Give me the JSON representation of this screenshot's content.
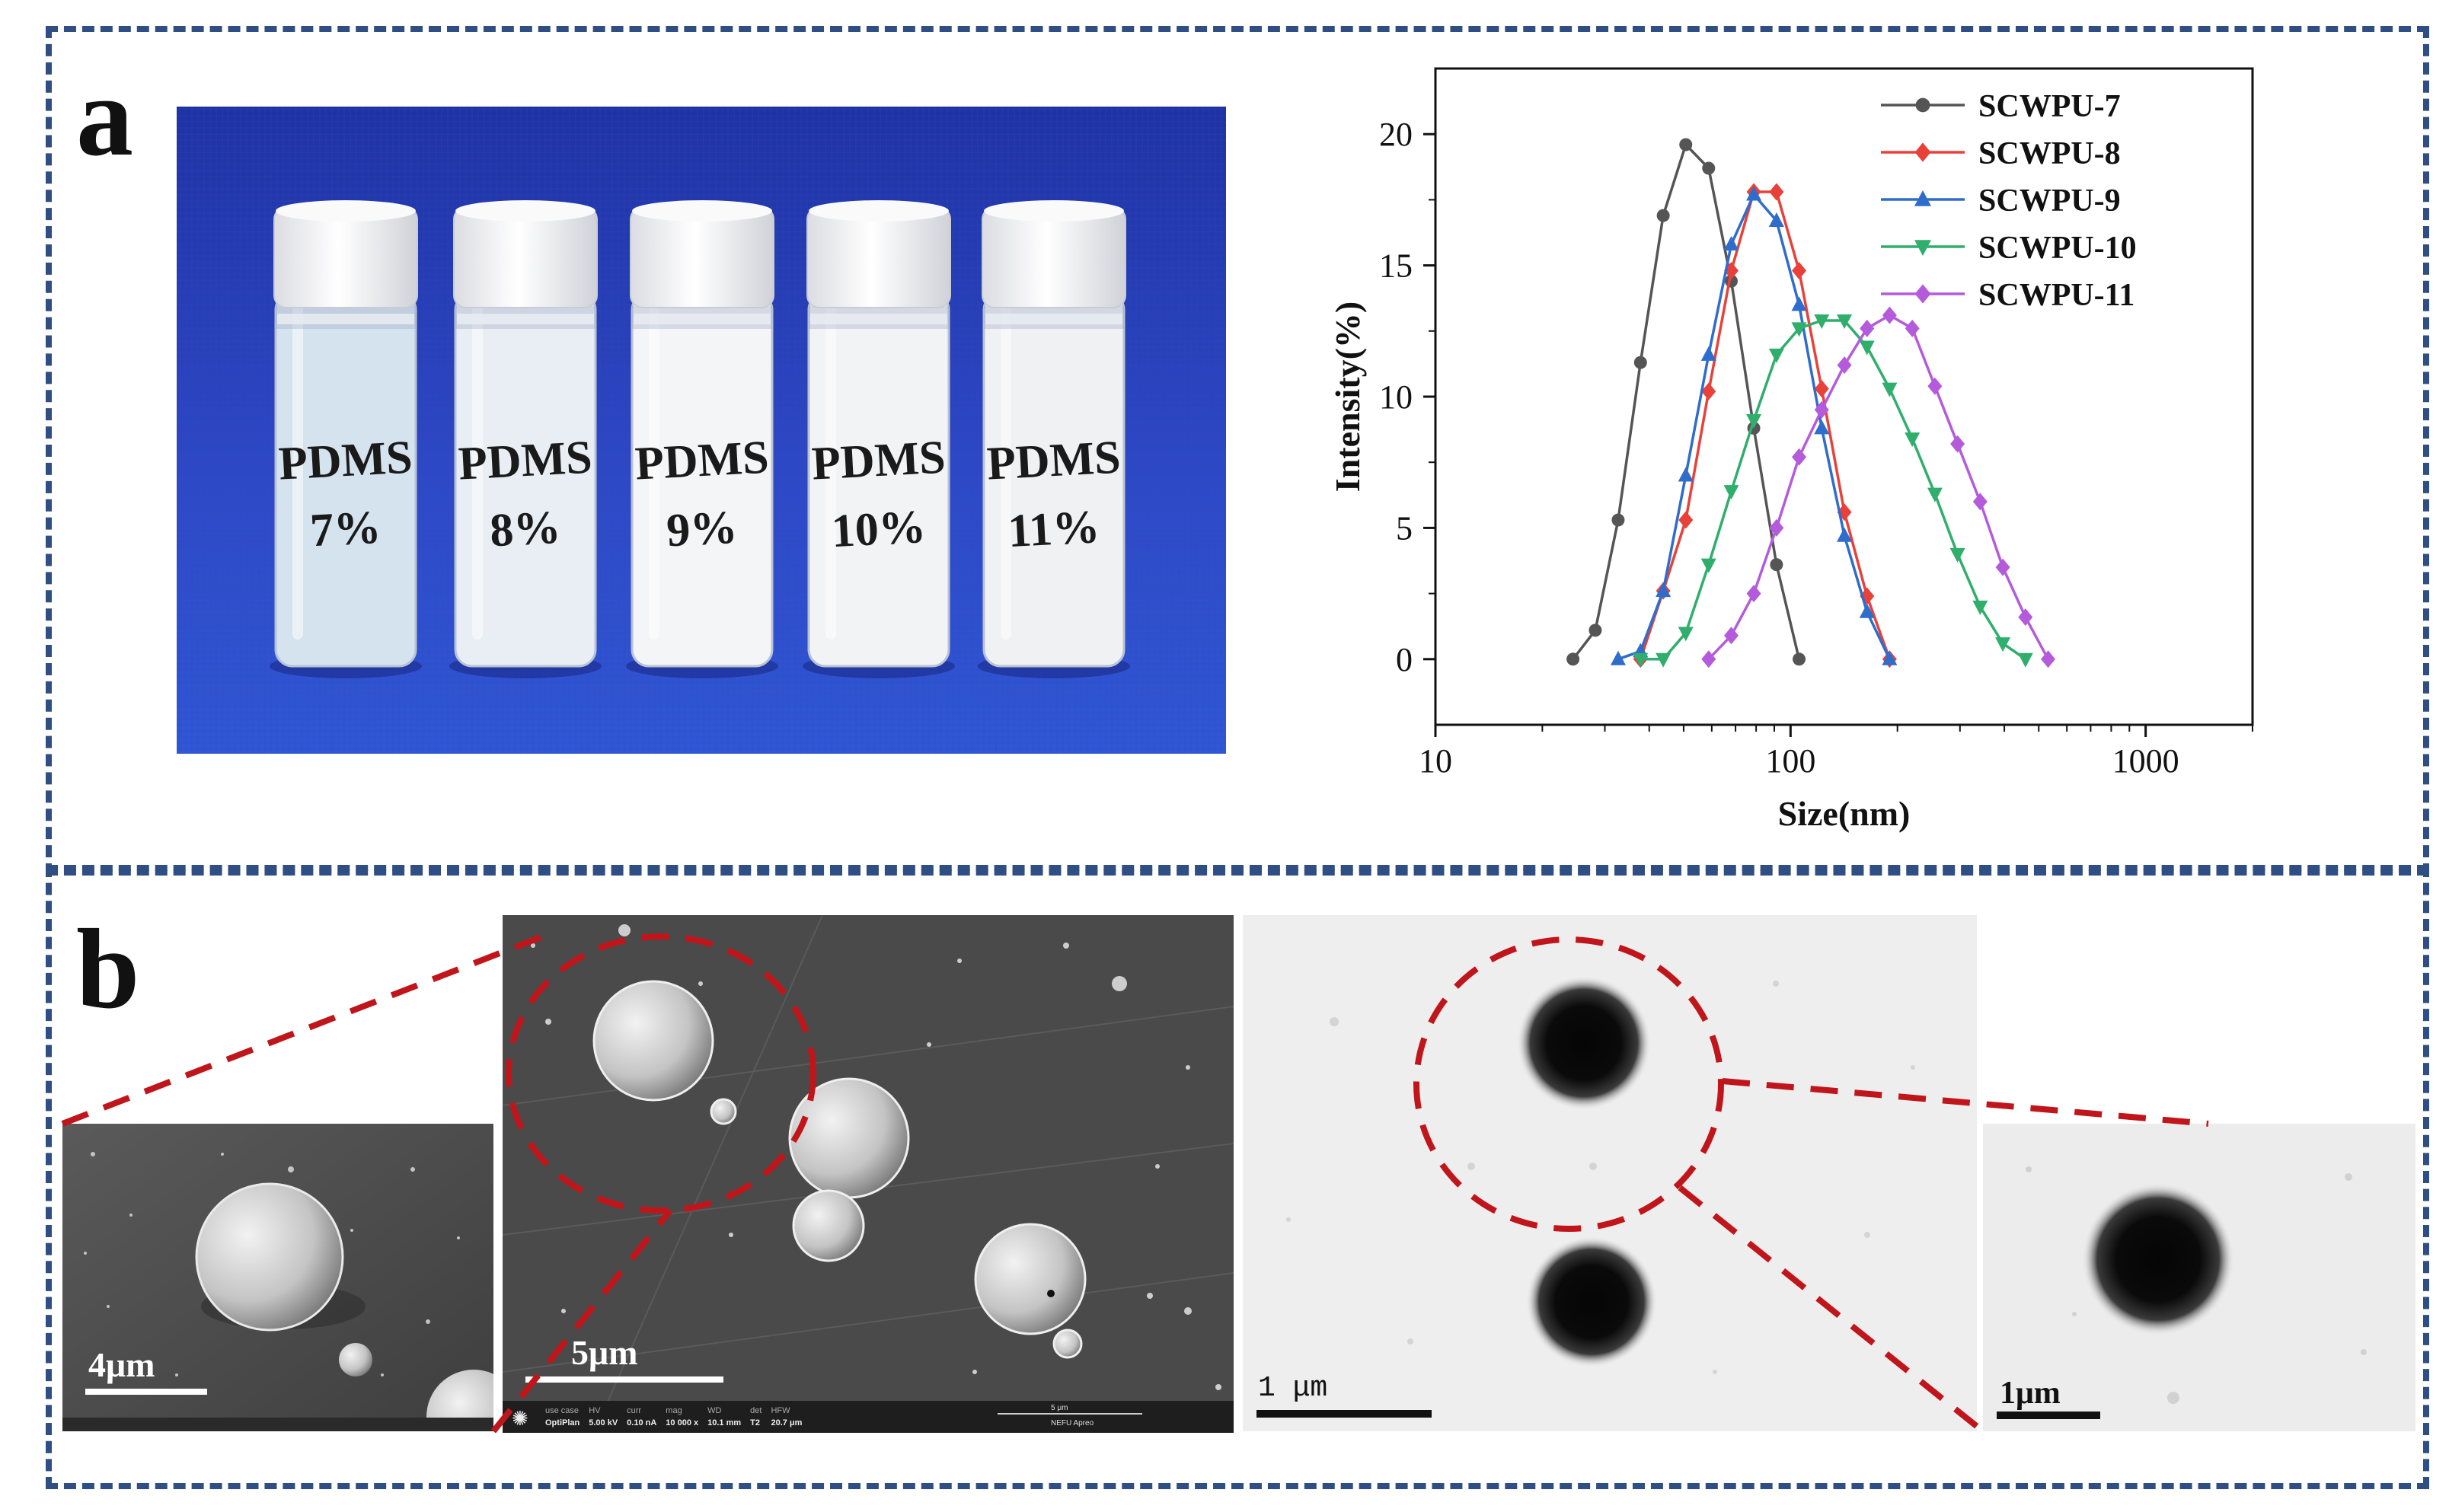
{
  "panels": {
    "a": {
      "letter": "a",
      "photo": {
        "vials": [
          {
            "line1": "PDMS",
            "line2": "7%"
          },
          {
            "line1": "PDMS",
            "line2": "8%"
          },
          {
            "line1": "PDMS",
            "line2": "9%"
          },
          {
            "line1": "PDMS",
            "line2": "10%"
          },
          {
            "line1": "PDMS",
            "line2": "11%"
          }
        ]
      }
    },
    "b": {
      "letter": "b",
      "sem_left_scale": "4μm",
      "sem_center_scale": "5μm",
      "tem_center_scale": "1 μm",
      "tem_right_scale": "1μm",
      "sem_info": {
        "fields": [
          {
            "label": "use case",
            "value": "OptiPlan"
          },
          {
            "label": "HV",
            "value": "5.00 kV"
          },
          {
            "label": "curr",
            "value": "0.10 nA"
          },
          {
            "label": "mag",
            "value": "10 000 x"
          },
          {
            "label": "WD",
            "value": "10.1 mm"
          },
          {
            "label": "det",
            "value": "T2"
          },
          {
            "label": "HFW",
            "value": "20.7 μm"
          }
        ],
        "bar_label": "5 μm",
        "lab": "NEFU Apreo"
      }
    }
  },
  "chart_data": {
    "type": "line",
    "xlabel": "Size(nm)",
    "ylabel": "Intensity(%)",
    "xscale": "log",
    "xlim": [
      10,
      2000
    ],
    "ylim": [
      -2.5,
      22.5
    ],
    "xticks": [
      10,
      100,
      1000
    ],
    "xtick_labels": [
      "10",
      "100",
      "1000"
    ],
    "yticks": [
      0,
      5,
      10,
      15,
      20
    ],
    "grid": false,
    "legend_position": "top-right",
    "series": [
      {
        "name": "SCWPU-7",
        "color": "#555555",
        "marker": "circle",
        "x": [
          24.4,
          28.2,
          32.7,
          37.8,
          43.8,
          50.7,
          58.8,
          68.1,
          78.8,
          91.3,
          105.7
        ],
        "y": [
          0,
          1.1,
          5.3,
          11.3,
          16.9,
          19.6,
          18.7,
          14.4,
          8.8,
          3.6,
          0
        ]
      },
      {
        "name": "SCWPU-8",
        "color": "#e8413a",
        "marker": "diamond",
        "x": [
          37.8,
          43.8,
          50.7,
          58.8,
          68.1,
          78.8,
          91.3,
          105.7,
          122.4,
          141.8,
          164.2,
          190.1
        ],
        "y": [
          0,
          2.6,
          5.3,
          10.2,
          14.8,
          17.8,
          17.8,
          14.8,
          10.3,
          5.6,
          2.4,
          0
        ]
      },
      {
        "name": "SCWPU-9",
        "color": "#2f6dcc",
        "marker": "triangle-up",
        "x": [
          32.7,
          37.8,
          43.8,
          50.7,
          58.8,
          68.1,
          78.8,
          91.3,
          105.7,
          122.4,
          141.8,
          164.2,
          190.1
        ],
        "y": [
          0,
          0.3,
          2.6,
          7.0,
          11.6,
          15.8,
          17.7,
          16.7,
          13.5,
          8.8,
          4.7,
          1.8,
          0
        ]
      },
      {
        "name": "SCWPU-10",
        "color": "#2fae6c",
        "marker": "triangle-down",
        "x": [
          37.8,
          43.8,
          50.7,
          58.8,
          68.1,
          78.8,
          91.3,
          105.7,
          122.4,
          141.8,
          164.2,
          190.1,
          220.2,
          255.0,
          295.3,
          342.0,
          396.1,
          458.7
        ],
        "y": [
          0,
          0,
          1.0,
          3.6,
          6.4,
          9.1,
          11.6,
          12.6,
          12.9,
          12.9,
          11.9,
          10.3,
          8.4,
          6.3,
          4.0,
          2.0,
          0.6,
          0
        ]
      },
      {
        "name": "SCWPU-11",
        "color": "#b45bdb",
        "marker": "diamond",
        "x": [
          58.8,
          68.1,
          78.8,
          91.3,
          105.7,
          122.4,
          141.8,
          164.2,
          190.1,
          220.2,
          255.0,
          295.3,
          342.0,
          396.1,
          458.7,
          531.3
        ],
        "y": [
          0,
          0.9,
          2.5,
          5.0,
          7.7,
          9.5,
          11.2,
          12.6,
          13.1,
          12.6,
          10.4,
          8.2,
          6.0,
          3.5,
          1.6,
          0
        ]
      }
    ]
  }
}
